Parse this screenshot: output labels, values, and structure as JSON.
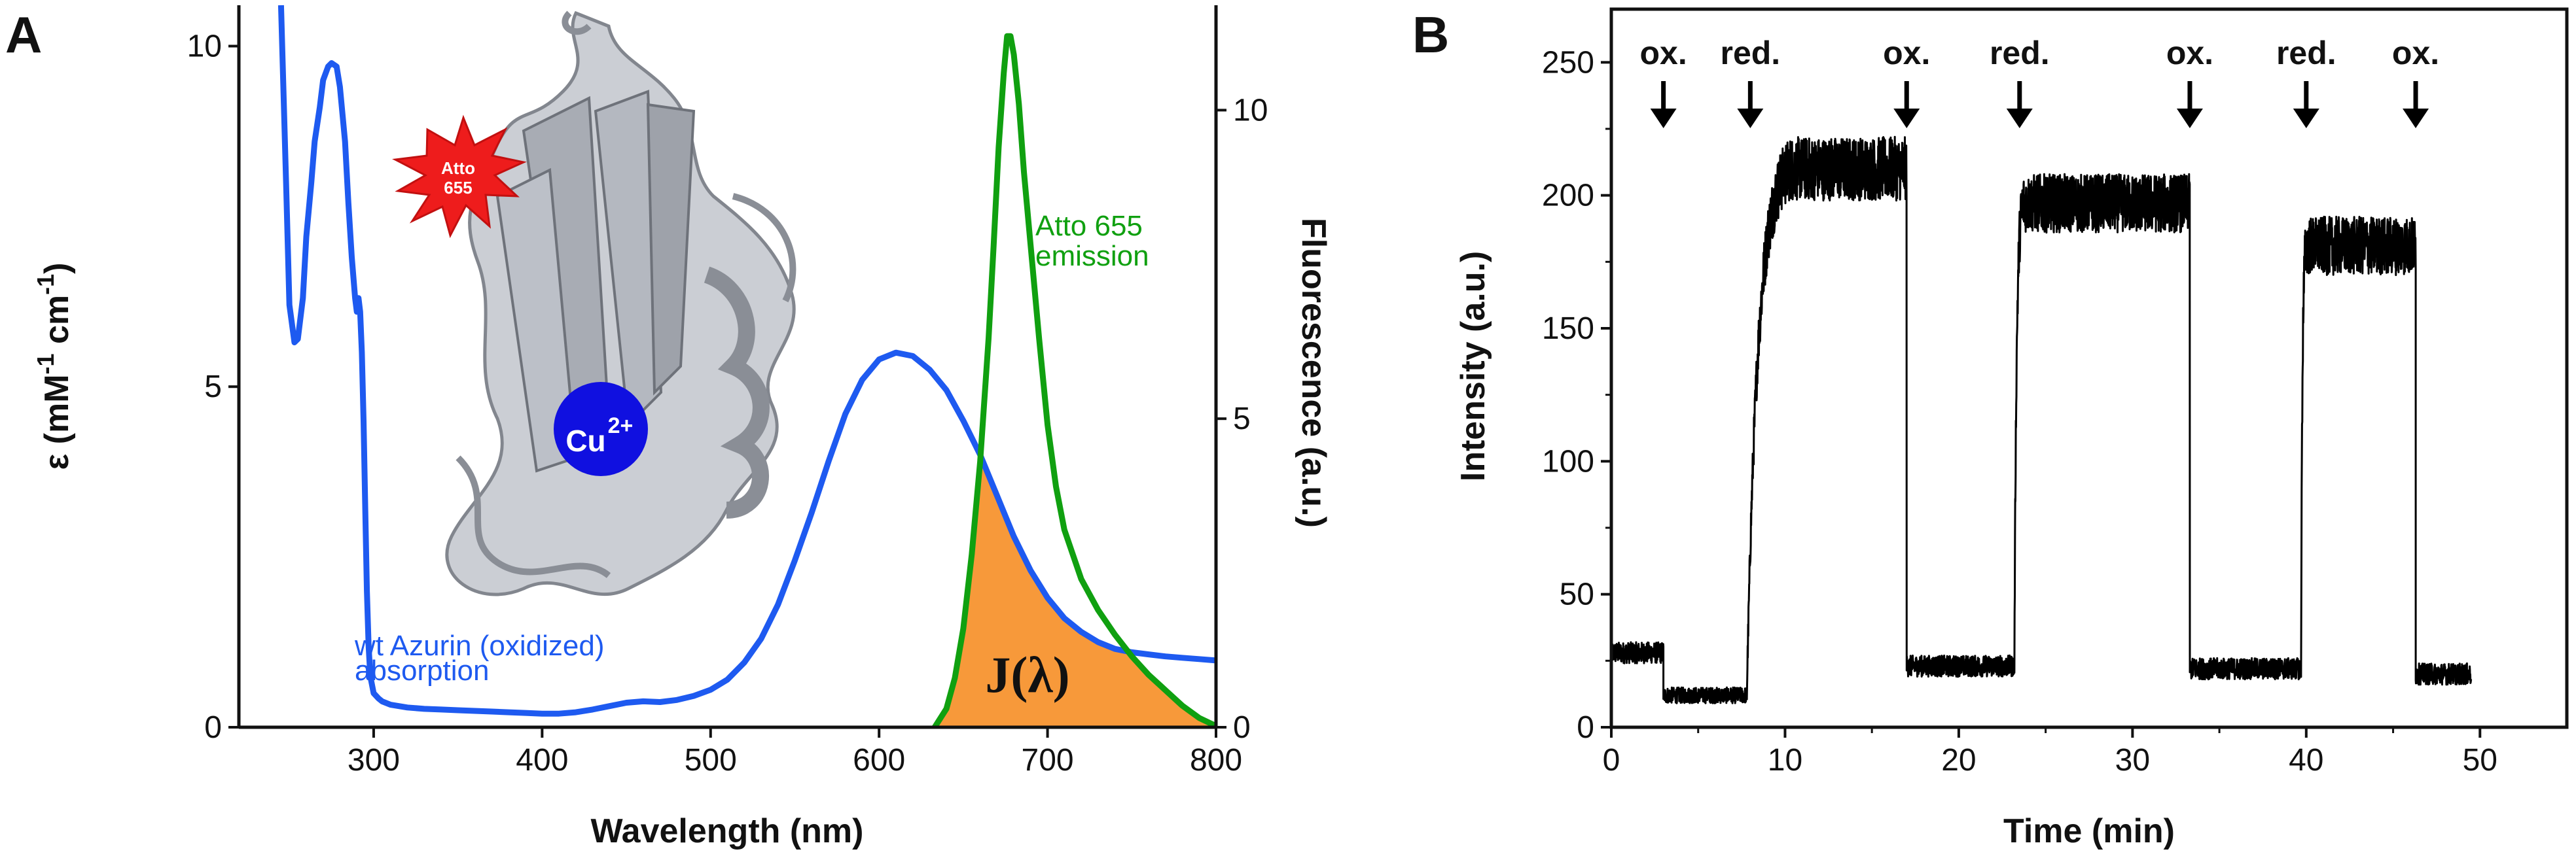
{
  "panels": {
    "a_letter": "A",
    "b_letter": "B"
  },
  "colors": {
    "absorption": "#1e5af0",
    "emission": "#10a010",
    "overlap": "#f7993a",
    "trace": "#000000",
    "star": "#ee1c1c",
    "copper": "#1010e0",
    "protein": "#b8bcc4"
  },
  "panel_a": {
    "annotations": {
      "absorption_line1": "wt Azurin (oxidized)",
      "absorption_line2": "absorption",
      "emission_line1": "Atto 655",
      "emission_line2": "emission",
      "overlap_label": "J(λ)",
      "dye_line1": "Atto",
      "dye_line2": "655",
      "copper_label": "Cu",
      "copper_charge": "2+"
    },
    "icons": [
      "protein-ribbon-icon",
      "atto-star-icon",
      "copper-ion-icon"
    ]
  },
  "chart_data": [
    {
      "type": "line",
      "panel": "A",
      "title": "",
      "xlabel": "Wavelength (nm)",
      "ylabel_main": "ε (mM",
      "ylabel_unit1_exp": "-1",
      "ylabel_unit2": " cm",
      "ylabel_unit2_exp": "-1",
      "ylabel_close": ")",
      "y2label": "Fluorescence (a.u.)",
      "xlim": [
        220,
        800
      ],
      "ylim": [
        0,
        10.6
      ],
      "y2lim": [
        0,
        11.7
      ],
      "xticks": [
        300,
        400,
        500,
        600,
        700,
        800
      ],
      "xtick_labels": [
        "300",
        "400",
        "500",
        "600",
        "700",
        "800"
      ],
      "yticks": [
        0,
        5,
        10
      ],
      "ytick_labels": [
        "0",
        "5",
        "10"
      ],
      "y2ticks": [
        0,
        5,
        10
      ],
      "y2tick_labels": [
        "0",
        "5",
        "10"
      ],
      "series": [
        {
          "name": "wt Azurin (oxidized) absorption",
          "axis": "left",
          "x": [
            245,
            248,
            250,
            253,
            255,
            258,
            260,
            263,
            265,
            268,
            270,
            273,
            275,
            278,
            280,
            283,
            285,
            287,
            289,
            290,
            291,
            292,
            293,
            294,
            295,
            296,
            297,
            298,
            300,
            303,
            305,
            310,
            320,
            330,
            340,
            350,
            360,
            370,
            380,
            390,
            400,
            410,
            420,
            430,
            440,
            450,
            460,
            470,
            480,
            490,
            500,
            510,
            520,
            530,
            540,
            550,
            560,
            570,
            580,
            590,
            600,
            610,
            620,
            630,
            640,
            650,
            660,
            670,
            680,
            690,
            700,
            710,
            720,
            730,
            740,
            750,
            760,
            770,
            780,
            790,
            800
          ],
          "values": [
            10.6,
            8.0,
            6.2,
            5.65,
            5.7,
            6.3,
            7.2,
            8.0,
            8.6,
            9.1,
            9.5,
            9.7,
            9.75,
            9.7,
            9.4,
            8.6,
            7.7,
            6.9,
            6.3,
            6.1,
            6.3,
            6.1,
            5.5,
            4.5,
            3.2,
            2.0,
            1.2,
            0.75,
            0.5,
            0.42,
            0.38,
            0.33,
            0.29,
            0.27,
            0.26,
            0.25,
            0.24,
            0.23,
            0.22,
            0.21,
            0.2,
            0.2,
            0.22,
            0.26,
            0.31,
            0.36,
            0.38,
            0.37,
            0.4,
            0.46,
            0.55,
            0.7,
            0.95,
            1.3,
            1.8,
            2.45,
            3.15,
            3.9,
            4.6,
            5.1,
            5.4,
            5.5,
            5.45,
            5.25,
            4.95,
            4.5,
            4.0,
            3.4,
            2.8,
            2.3,
            1.9,
            1.6,
            1.4,
            1.25,
            1.15,
            1.1,
            1.07,
            1.04,
            1.02,
            1.0,
            0.98
          ]
        },
        {
          "name": "Atto 655 emission",
          "axis": "right",
          "x": [
            633,
            640,
            645,
            650,
            655,
            660,
            665,
            668,
            671,
            674,
            676,
            678,
            680,
            683,
            686,
            690,
            695,
            700,
            705,
            710,
            720,
            730,
            740,
            750,
            760,
            770,
            780,
            790,
            800
          ],
          "values": [
            0.0,
            0.3,
            0.8,
            1.6,
            2.8,
            4.3,
            6.3,
            7.8,
            9.4,
            10.6,
            11.2,
            11.2,
            10.9,
            10.1,
            9.0,
            7.8,
            6.3,
            4.9,
            3.9,
            3.2,
            2.4,
            1.9,
            1.5,
            1.15,
            0.85,
            0.6,
            0.35,
            0.15,
            0.02
          ]
        }
      ]
    },
    {
      "type": "line",
      "panel": "B",
      "title": "",
      "xlabel": "Time (min)",
      "ylabel": "Intensity (a.u.)",
      "xlim": [
        0,
        55
      ],
      "ylim": [
        0,
        270
      ],
      "xticks": [
        0,
        10,
        20,
        30,
        40,
        50
      ],
      "xtick_labels": [
        "0",
        "10",
        "20",
        "30",
        "40",
        "50"
      ],
      "yticks": [
        0,
        50,
        100,
        150,
        200,
        250
      ],
      "ytick_labels": [
        "0",
        "50",
        "100",
        "150",
        "200",
        "250"
      ],
      "events": [
        {
          "label": "ox.",
          "t": 3.0
        },
        {
          "label": "red.",
          "t": 8.0
        },
        {
          "label": "ox.",
          "t": 17.0
        },
        {
          "label": "red.",
          "t": 23.5
        },
        {
          "label": "ox.",
          "t": 33.3
        },
        {
          "label": "red.",
          "t": 40.0
        },
        {
          "label": "ox.",
          "t": 46.3
        }
      ],
      "segments": [
        {
          "t_start": 0.0,
          "t_end": 3.0,
          "level": 28,
          "noise": 4,
          "rise_min": 0
        },
        {
          "t_start": 3.0,
          "t_end": 7.8,
          "level": 12,
          "noise": 3,
          "rise_min": 0
        },
        {
          "t_start": 7.8,
          "t_end": 17.0,
          "level": 210,
          "noise": 12,
          "rise_min": 2.5
        },
        {
          "t_start": 17.0,
          "t_end": 23.2,
          "level": 23,
          "noise": 4,
          "rise_min": 0
        },
        {
          "t_start": 23.2,
          "t_end": 33.3,
          "level": 197,
          "noise": 11,
          "rise_min": 0.5
        },
        {
          "t_start": 33.3,
          "t_end": 39.7,
          "level": 22,
          "noise": 4,
          "rise_min": 0
        },
        {
          "t_start": 39.7,
          "t_end": 46.3,
          "level": 181,
          "noise": 11,
          "rise_min": 0.3
        },
        {
          "t_start": 46.3,
          "t_end": 49.5,
          "level": 20,
          "noise": 4,
          "rise_min": 0
        }
      ]
    }
  ]
}
